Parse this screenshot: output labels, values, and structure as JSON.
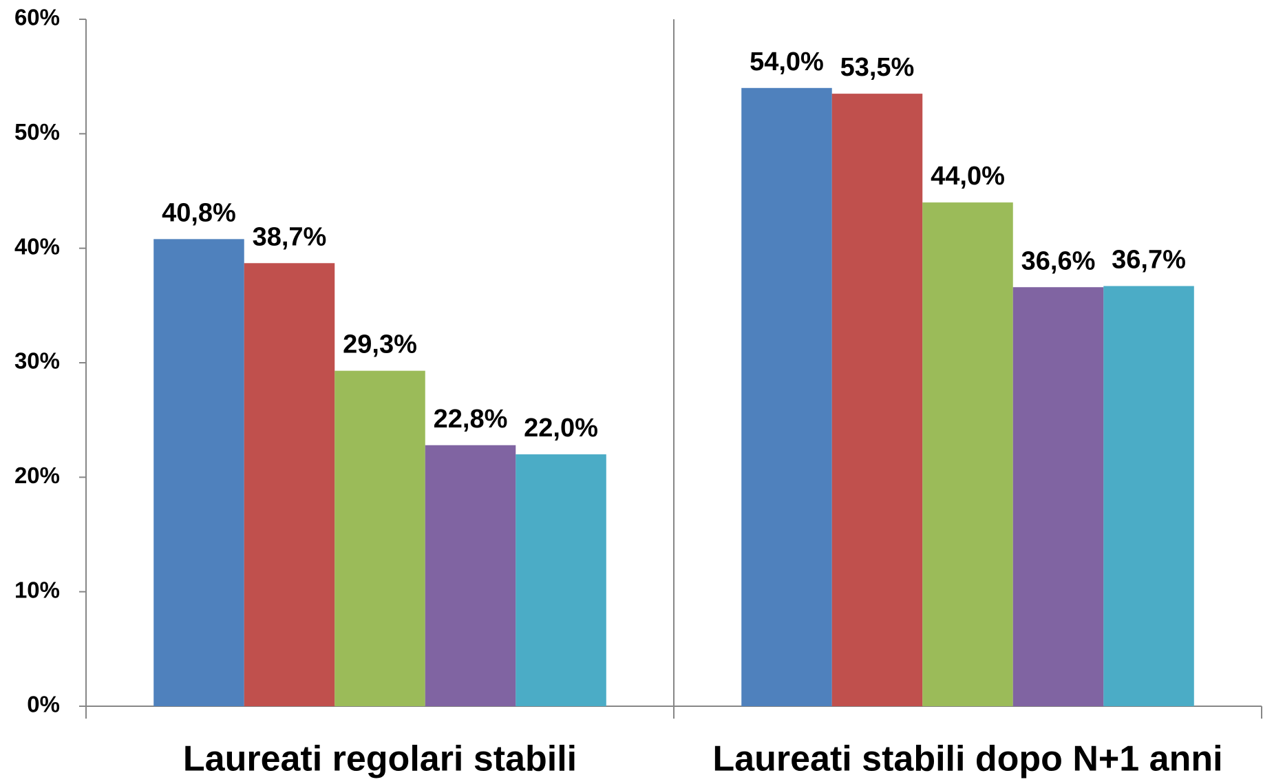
{
  "chart_data": {
    "type": "bar",
    "categories": [
      "Laureati regolari stabili",
      "Laureati stabili dopo N+1 anni"
    ],
    "series": [
      {
        "color": "#4f81bd",
        "values": [
          40.8,
          54.0
        ],
        "value_labels": [
          "40,8%",
          "54,0%"
        ]
      },
      {
        "color": "#c0504d",
        "values": [
          38.7,
          53.5
        ],
        "value_labels": [
          "38,7%",
          "53,5%"
        ]
      },
      {
        "color": "#9bbb59",
        "values": [
          29.3,
          44.0
        ],
        "value_labels": [
          "29,3%",
          "44,0%"
        ]
      },
      {
        "color": "#8064a2",
        "values": [
          22.8,
          36.6
        ],
        "value_labels": [
          "22,8%",
          "36,6%"
        ]
      },
      {
        "color": "#4bacc6",
        "values": [
          22.0,
          36.7
        ],
        "value_labels": [
          "22,0%",
          "36,7%"
        ]
      }
    ],
    "ylim": [
      0,
      60
    ],
    "yticks": [
      {
        "value": 0,
        "label": "0%"
      },
      {
        "value": 10,
        "label": "10%"
      },
      {
        "value": 20,
        "label": "20%"
      },
      {
        "value": 30,
        "label": "30%"
      },
      {
        "value": 40,
        "label": "40%"
      },
      {
        "value": 50,
        "label": "50%"
      },
      {
        "value": 60,
        "label": "60%"
      }
    ],
    "grid": false
  }
}
